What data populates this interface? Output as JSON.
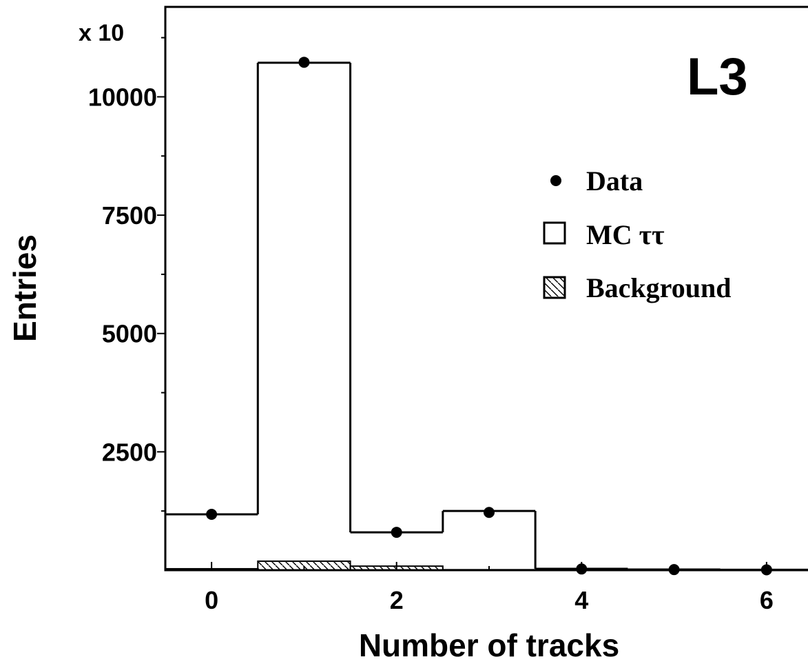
{
  "chart_data": {
    "type": "bar",
    "experiment_label": "L3",
    "xlabel": "Number of tracks",
    "ylabel": "Entries",
    "y_multiplier_label": "x 10",
    "xlim": [
      -0.5,
      6.5
    ],
    "ylim": [
      0,
      11900
    ],
    "x_ticks": [
      0,
      2,
      4,
      6
    ],
    "x_tick_labels": [
      "0",
      "2",
      "4",
      "6"
    ],
    "y_ticks": [
      2500,
      5000,
      7500,
      10000
    ],
    "y_tick_labels": [
      "2500",
      "5000",
      "7500",
      "10000"
    ],
    "grid": false,
    "legend_placement": "top-right",
    "legend": [
      {
        "marker": "dot",
        "label": "Data"
      },
      {
        "marker": "open-box",
        "label": "MC ττ"
      },
      {
        "marker": "hatched-box",
        "label": "Background"
      }
    ],
    "categories": [
      0,
      1,
      2,
      3,
      4,
      5,
      6
    ],
    "series": [
      {
        "name": "Data",
        "style": "points",
        "values": [
          1180,
          10730,
          800,
          1220,
          25,
          12,
          8
        ]
      },
      {
        "name": "MC ττ",
        "style": "open-histogram",
        "values": [
          1180,
          10720,
          800,
          1250,
          30,
          15,
          10
        ]
      },
      {
        "name": "Background",
        "style": "hatched-histogram",
        "values": [
          30,
          190,
          85,
          10,
          5,
          0,
          0
        ]
      }
    ],
    "colors": {
      "foreground": "#000000",
      "background": "#ffffff"
    }
  }
}
